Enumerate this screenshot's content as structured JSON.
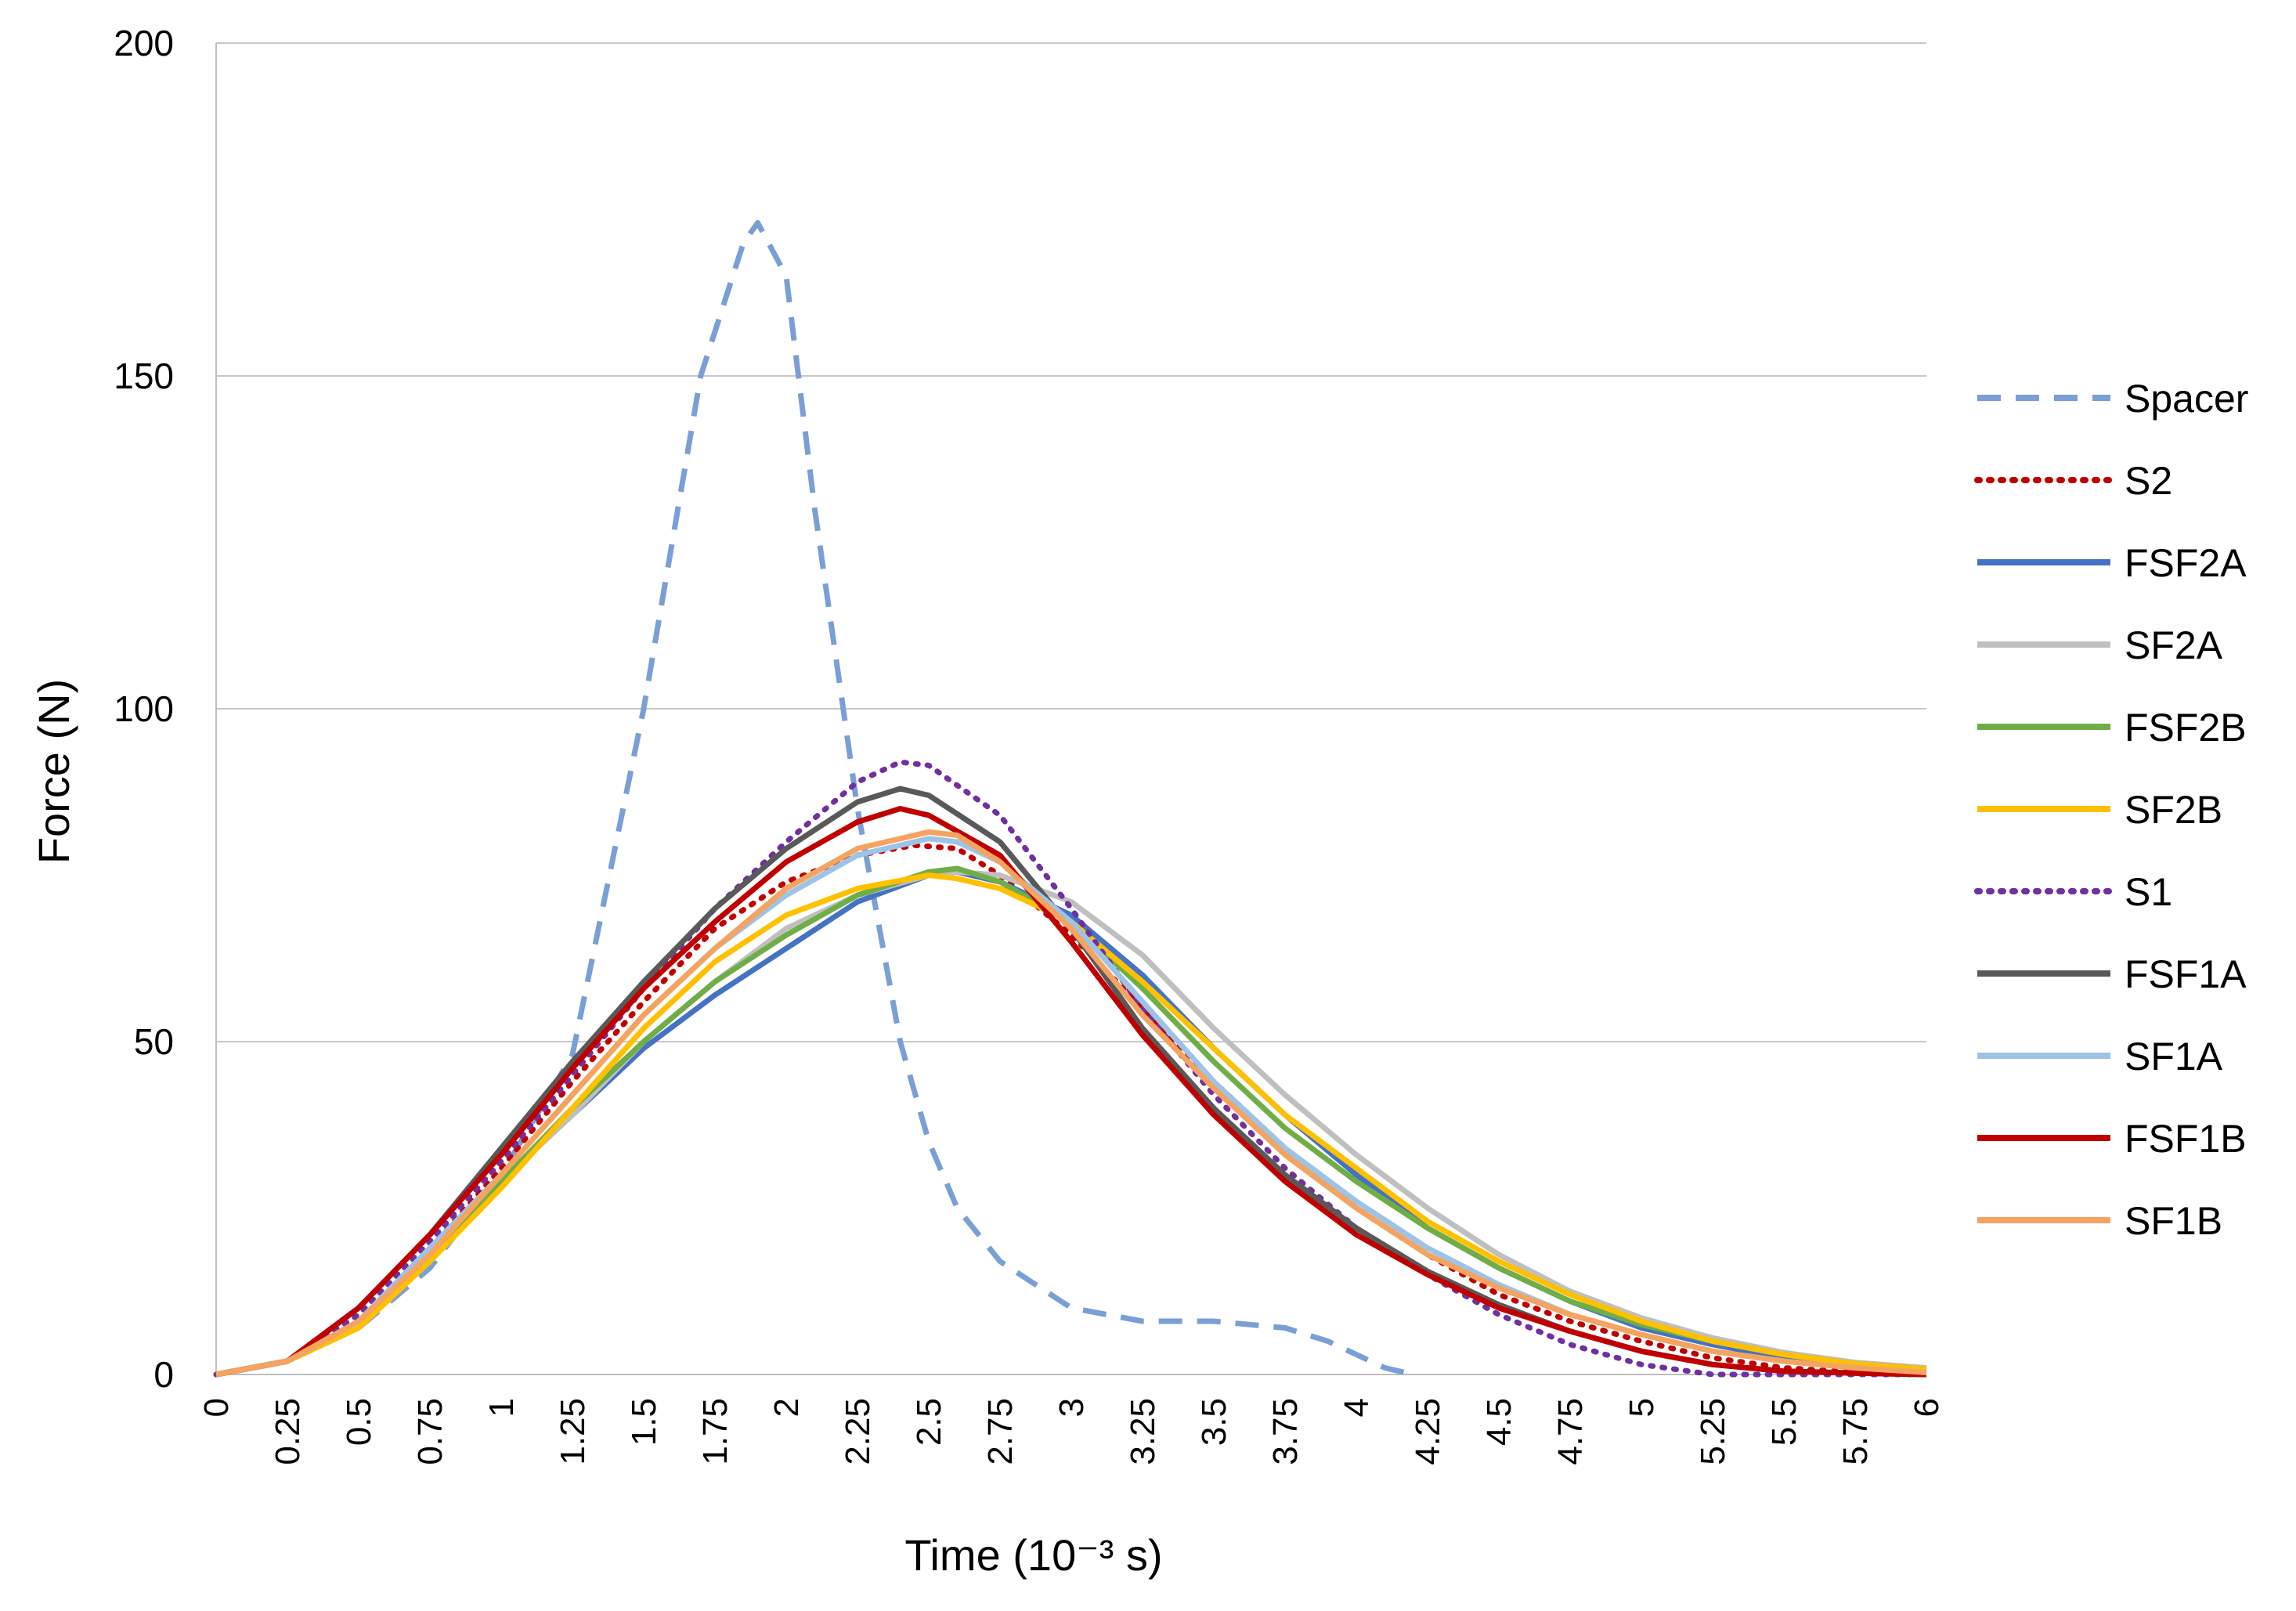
{
  "chart_data": {
    "type": "line",
    "title": "",
    "xlabel": "Time (10⁻³ s)",
    "ylabel": "Force (N)",
    "xlim": [
      0,
      6
    ],
    "ylim": [
      0,
      200
    ],
    "y_ticks": [
      "0",
      "50",
      "100",
      "150",
      "200"
    ],
    "x_ticks": [
      "0",
      "0.25",
      "0.5",
      "0.75",
      "1",
      "1.25",
      "1.5",
      "1.75",
      "2",
      "2.25",
      "2.5",
      "2.75",
      "3",
      "3.25",
      "3.5",
      "3.75",
      "4",
      "4.25",
      "4.5",
      "4.75",
      "5",
      "5.25",
      "5.5",
      "5.75",
      "6"
    ],
    "grid": "horizontal",
    "legend_position": "right",
    "series": [
      {
        "name": "Spacer",
        "color": "#7a9fd6",
        "dash": "dashed",
        "x": [
          0,
          0.25,
          0.5,
          0.75,
          1.0,
          1.25,
          1.5,
          1.7,
          1.85,
          1.9,
          2.0,
          2.1,
          2.25,
          2.4,
          2.5,
          2.6,
          2.75,
          3.0,
          3.25,
          3.5,
          3.75,
          3.9,
          4.0,
          4.1,
          4.2
        ],
        "y": [
          0,
          2,
          7,
          16,
          30,
          48,
          100,
          150,
          170,
          173,
          165,
          130,
          85,
          50,
          35,
          25,
          17,
          10,
          8,
          8,
          7,
          5,
          3,
          1,
          0
        ]
      },
      {
        "name": "S2",
        "color": "#c00000",
        "dash": "dotted",
        "x": [
          0,
          0.25,
          0.5,
          0.75,
          1.0,
          1.25,
          1.5,
          1.75,
          2.0,
          2.25,
          2.45,
          2.6,
          2.75,
          3.0,
          3.25,
          3.5,
          3.75,
          4.0,
          4.25,
          4.5,
          4.75,
          5.0,
          5.25,
          5.5,
          5.75,
          6.0
        ],
        "y": [
          0,
          2,
          8,
          19,
          31,
          44,
          56,
          67,
          74,
          78,
          79.5,
          79,
          75,
          66,
          55,
          44,
          34,
          25,
          18,
          12,
          8,
          5,
          2.5,
          1,
          0.3,
          0
        ]
      },
      {
        "name": "FSF2A",
        "color": "#4472c4",
        "dash": "solid",
        "x": [
          0,
          0.25,
          0.5,
          0.75,
          1.0,
          1.25,
          1.5,
          1.75,
          2.0,
          2.25,
          2.5,
          2.6,
          2.75,
          3.0,
          3.25,
          3.5,
          3.75,
          4.0,
          4.25,
          4.5,
          4.75,
          5.0,
          5.25,
          5.5,
          5.75,
          6.0
        ],
        "y": [
          0,
          2,
          8,
          18,
          29,
          39,
          49,
          57,
          64,
          71,
          75,
          75.5,
          74,
          69,
          60,
          49,
          39,
          30,
          22,
          16,
          11,
          7,
          4.5,
          2.5,
          1.2,
          0.5
        ]
      },
      {
        "name": "SF2A",
        "color": "#bfbfbf",
        "dash": "solid",
        "x": [
          0,
          0.25,
          0.5,
          0.75,
          1.0,
          1.25,
          1.5,
          1.75,
          2.0,
          2.25,
          2.5,
          2.6,
          2.75,
          3.0,
          3.25,
          3.5,
          3.75,
          4.0,
          4.25,
          4.5,
          4.75,
          5.0,
          5.25,
          5.5,
          5.75,
          6.0
        ],
        "y": [
          0,
          2,
          8,
          18,
          29,
          39,
          50,
          59,
          67,
          72,
          75,
          75.5,
          75,
          71,
          63,
          52,
          42,
          33,
          25,
          18,
          12.5,
          8.5,
          5.5,
          3.3,
          1.8,
          1
        ]
      },
      {
        "name": "FSF2B",
        "color": "#70ad47",
        "dash": "solid",
        "x": [
          0,
          0.25,
          0.5,
          0.75,
          1.0,
          1.25,
          1.5,
          1.75,
          2.0,
          2.25,
          2.5,
          2.6,
          2.75,
          3.0,
          3.25,
          3.5,
          3.75,
          4.0,
          4.25,
          4.5,
          4.75,
          5.0,
          5.25,
          5.5,
          5.75,
          6.0
        ],
        "y": [
          0,
          2,
          8,
          18,
          29,
          40,
          50,
          59,
          66,
          72,
          75.5,
          76,
          74,
          68,
          58,
          47,
          37,
          29,
          22,
          16,
          11,
          7.5,
          5,
          3,
          1.6,
          0.8
        ]
      },
      {
        "name": "SF2B",
        "color": "#ffc000",
        "dash": "solid",
        "x": [
          0,
          0.25,
          0.5,
          0.75,
          1.0,
          1.25,
          1.5,
          1.75,
          2.0,
          2.25,
          2.5,
          2.6,
          2.75,
          3.0,
          3.25,
          3.5,
          3.75,
          4.0,
          4.25,
          4.5,
          4.75,
          5.0,
          5.25,
          5.5,
          5.75,
          6.0
        ],
        "y": [
          0,
          2,
          7,
          17,
          28,
          40,
          52,
          62,
          69,
          73,
          75,
          74.5,
          73,
          68,
          59,
          49,
          39,
          31,
          23,
          17,
          12,
          8,
          5,
          3,
          1.6,
          0.8
        ]
      },
      {
        "name": "S1",
        "color": "#7030a0",
        "dash": "dotted",
        "x": [
          0,
          0.25,
          0.5,
          0.75,
          1.0,
          1.25,
          1.5,
          1.75,
          2.0,
          2.25,
          2.4,
          2.5,
          2.75,
          3.0,
          3.25,
          3.5,
          3.75,
          4.0,
          4.25,
          4.5,
          4.75,
          5.0,
          5.25,
          5.5,
          5.75,
          6.0
        ],
        "y": [
          0,
          2,
          9,
          20,
          32,
          45,
          58,
          70,
          80,
          89,
          92,
          91.5,
          84,
          70,
          55,
          42,
          31,
          22,
          15,
          9,
          4.5,
          1.5,
          0,
          0,
          0,
          0
        ]
      },
      {
        "name": "FSF1A",
        "color": "#595959",
        "dash": "solid",
        "x": [
          0,
          0.25,
          0.5,
          0.75,
          1.0,
          1.25,
          1.5,
          1.75,
          2.0,
          2.25,
          2.4,
          2.5,
          2.75,
          3.0,
          3.25,
          3.5,
          3.75,
          4.0,
          4.25,
          4.5,
          4.75,
          5.0,
          5.25,
          5.5,
          5.75,
          6.0
        ],
        "y": [
          0,
          2,
          10,
          21,
          34,
          47,
          59,
          70,
          79,
          86,
          88,
          87,
          80,
          67,
          52,
          40,
          30,
          22,
          15.5,
          10.5,
          6.5,
          3.5,
          1.5,
          0.5,
          0.2,
          0
        ]
      },
      {
        "name": "SF1A",
        "color": "#9dc3e6",
        "dash": "solid",
        "x": [
          0,
          0.25,
          0.5,
          0.75,
          1.0,
          1.25,
          1.5,
          1.75,
          2.0,
          2.25,
          2.5,
          2.6,
          2.75,
          3.0,
          3.25,
          3.5,
          3.75,
          4.0,
          4.25,
          4.5,
          4.75,
          5.0,
          5.25,
          5.5,
          5.75,
          6.0
        ],
        "y": [
          0,
          2,
          8,
          19,
          30,
          42,
          54,
          64,
          72,
          78,
          80.5,
          80,
          77,
          68,
          56,
          44,
          34,
          26,
          19,
          13.5,
          9,
          6,
          3.5,
          2,
          1,
          0.3
        ]
      },
      {
        "name": "FSF1B",
        "color": "#c00000",
        "dash": "solid",
        "x": [
          0,
          0.25,
          0.5,
          0.75,
          1.0,
          1.25,
          1.5,
          1.75,
          2.0,
          2.25,
          2.4,
          2.5,
          2.75,
          3.0,
          3.25,
          3.5,
          3.75,
          4.0,
          4.25,
          4.5,
          4.75,
          5.0,
          5.25,
          5.5,
          5.75,
          6.0
        ],
        "y": [
          0,
          2,
          10,
          21,
          33,
          46,
          58,
          68,
          77,
          83,
          85,
          84,
          78,
          65,
          51,
          39,
          29,
          21,
          15,
          10,
          6.5,
          3.5,
          1.5,
          0.5,
          0.2,
          0
        ]
      },
      {
        "name": "SF1B",
        "color": "#f4a460",
        "dash": "solid",
        "x": [
          0,
          0.25,
          0.5,
          0.75,
          1.0,
          1.25,
          1.5,
          1.75,
          2.0,
          2.25,
          2.5,
          2.6,
          2.75,
          3.0,
          3.25,
          3.5,
          3.75,
          4.0,
          4.25,
          4.5,
          4.75,
          5.0,
          5.25,
          5.5,
          5.75,
          6.0
        ],
        "y": [
          0,
          2,
          8,
          18,
          30,
          42,
          54,
          64,
          73,
          79,
          81.5,
          81,
          77,
          67,
          54,
          43,
          33,
          25,
          18,
          13,
          9,
          6,
          3.5,
          2,
          1,
          0.3
        ]
      }
    ]
  }
}
